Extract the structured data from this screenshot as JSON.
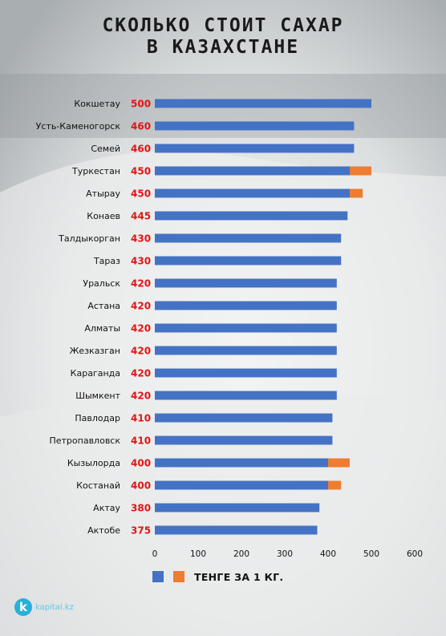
{
  "title": {
    "line1": "СКОЛЬКО СТОИТ САХАР",
    "line2": "В КАЗАХСТАНЕ"
  },
  "colors": {
    "primary": "#4472c4",
    "range": "#ed7d31",
    "value_text": "#e01616",
    "brand": "#27b0d8"
  },
  "brand": {
    "icon_letter": "k",
    "name": "kapital.kz"
  },
  "chart_data": {
    "type": "bar",
    "orientation": "horizontal",
    "stacked": true,
    "categories": [
      "Кокшетау",
      "Усть-Каменогорск",
      "Семей",
      "Туркестан",
      "Атырау",
      "Конаев",
      "Талдыкорган",
      "Тараз",
      "Уральск",
      "Астана",
      "Алматы",
      "Жезказган",
      "Караганда",
      "Шымкент",
      "Павлодар",
      "Петропавловск",
      "Кызылорда",
      "Костанай",
      "Актау",
      "Актобе"
    ],
    "value_labels": [
      "500",
      "460",
      "460",
      "450 - 500",
      "450 - 480",
      "445",
      "430",
      "430",
      "420",
      "420",
      "420",
      "420",
      "420",
      "420",
      "410",
      "410",
      "400 - 450",
      "400 - 430",
      "380",
      "375"
    ],
    "series": [
      {
        "name": "ТЕНГЕ ЗА 1 КГ.",
        "values": [
          500,
          460,
          460,
          450,
          450,
          445,
          430,
          430,
          420,
          420,
          420,
          420,
          420,
          420,
          410,
          410,
          400,
          400,
          380,
          375
        ]
      },
      {
        "values": [
          0,
          0,
          0,
          50,
          30,
          0,
          0,
          0,
          0,
          0,
          0,
          0,
          0,
          0,
          0,
          0,
          50,
          30,
          0,
          0
        ]
      }
    ],
    "xlim": [
      0,
      600
    ],
    "xticks": [
      "0",
      "100",
      "200",
      "300",
      "400",
      "500",
      "600"
    ],
    "grid": false,
    "legend": "bottom",
    "legend_label": "ТЕНГЕ ЗА 1 КГ."
  }
}
